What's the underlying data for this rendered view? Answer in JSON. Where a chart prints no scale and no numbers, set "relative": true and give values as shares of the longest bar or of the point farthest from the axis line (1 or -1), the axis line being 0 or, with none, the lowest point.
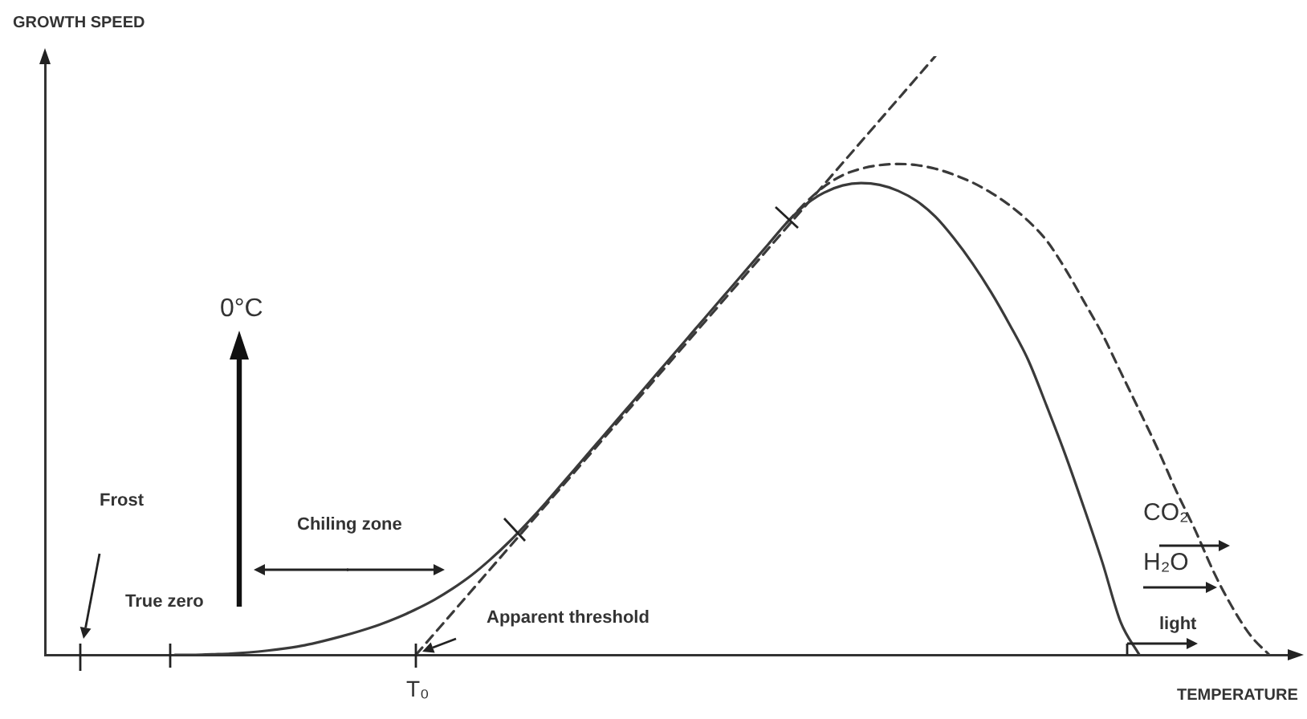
{
  "chart_data": {
    "type": "line",
    "relative": true,
    "xlabel": "TEMPERATURE",
    "ylabel": "GROWTH SPEED",
    "grid": false,
    "legend": false,
    "marker": "none",
    "categories": [
      null,
      null,
      null,
      null,
      null,
      null,
      null,
      null,
      null,
      null,
      null,
      null,
      null,
      null,
      null,
      null,
      null,
      null,
      null,
      null,
      null,
      null,
      null,
      null,
      null,
      null,
      null,
      null,
      null,
      null,
      null,
      null,
      null,
      null,
      null,
      null,
      null,
      null,
      null,
      null,
      null,
      null,
      null,
      null,
      null,
      null,
      null,
      null,
      null,
      null,
      null,
      null,
      null,
      null,
      null,
      null,
      null,
      null,
      null,
      null,
      null,
      null,
      null,
      null,
      null,
      null,
      null,
      null
    ],
    "series": [
      {
        "color": "#3a3a3a",
        "line_style": "solid",
        "values": [
          null,
          null,
          null,
          null,
          null,
          null,
          null,
          0,
          0,
          0.001,
          0.002,
          0.004,
          0.007,
          0.011,
          0.016,
          0.023,
          0.031,
          0.04,
          0.05,
          0.062,
          0.076,
          0.092,
          0.111,
          0.133,
          0.159,
          0.188,
          0.22,
          0.254,
          0.29,
          0.326,
          0.362,
          0.398,
          0.434,
          0.47,
          0.506,
          0.542,
          0.578,
          0.614,
          0.65,
          0.686,
          0.722,
          0.752,
          0.772,
          0.784,
          0.788,
          0.785,
          0.775,
          0.758,
          0.732,
          0.696,
          0.654,
          0.606,
          0.552,
          0.493,
          0.416,
          0.335,
          0.247,
          0.155,
          0.054,
          0,
          null,
          null,
          null,
          null,
          null,
          null,
          null,
          null
        ]
      },
      {
        "color": "#3a3a3a",
        "line_style": "dashed",
        "values": [
          null,
          null,
          null,
          null,
          null,
          null,
          null,
          null,
          null,
          null,
          null,
          null,
          null,
          null,
          null,
          null,
          null,
          null,
          null,
          null,
          null,
          null,
          null,
          null,
          null,
          null,
          null,
          null,
          null,
          null,
          null,
          null,
          null,
          null,
          null,
          null,
          null,
          null,
          null,
          null,
          0.722,
          0.755,
          0.782,
          0.801,
          0.812,
          0.818,
          0.82,
          0.818,
          0.812,
          0.802,
          0.789,
          0.772,
          0.751,
          0.725,
          0.692,
          0.645,
          0.591,
          0.536,
          0.472,
          0.408,
          0.343,
          0.273,
          0.209,
          0.139,
          0.08,
          0.032,
          0,
          null
        ]
      },
      {
        "color": "#3a3a3a",
        "line_style": "dashed",
        "values": [
          null,
          null,
          null,
          null,
          null,
          null,
          null,
          null,
          null,
          null,
          null,
          null,
          null,
          null,
          null,
          null,
          null,
          null,
          null,
          null,
          0,
          null,
          null,
          null,
          null,
          null,
          null,
          null,
          null,
          null,
          null,
          null,
          null,
          null,
          null,
          null,
          null,
          null,
          null,
          null,
          null,
          null,
          null,
          null,
          null,
          null,
          null,
          null,
          1,
          null,
          null,
          null,
          null,
          null,
          null,
          null,
          null,
          null,
          null,
          null,
          null,
          null,
          null,
          null,
          null,
          null,
          null,
          null
        ]
      }
    ],
    "annotations": [
      "Frost",
      "True zero",
      "0°C",
      "Chiling zone",
      "Apparent threshold",
      "CO₂",
      "H₂O",
      "light",
      "T₀"
    ]
  }
}
